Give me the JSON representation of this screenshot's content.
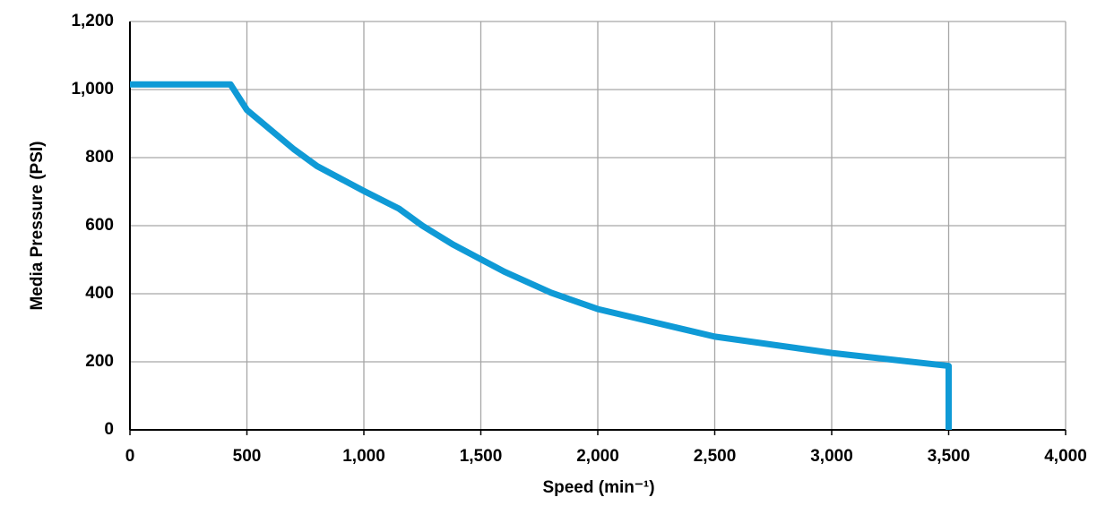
{
  "chart_data": {
    "type": "line",
    "x_label": "Speed (min⁻¹)",
    "y_label": "Media Pressure (PSI)",
    "x": [
      0,
      430,
      500,
      700,
      800,
      1000,
      1150,
      1250,
      1380,
      1600,
      1800,
      2000,
      2500,
      3000,
      3500,
      3500
    ],
    "series": [
      {
        "color": "#0f9ad6",
        "values": [
          1015,
          1015,
          940,
          825,
          775,
          702,
          650,
          600,
          545,
          465,
          403,
          355,
          274,
          226,
          188,
          0
        ]
      }
    ],
    "xlim": [
      0,
      4000
    ],
    "xticks": [
      0,
      500,
      {
        "value": 1000,
        "label": "1,000"
      },
      {
        "value": 1500,
        "label": "1,500"
      },
      {
        "value": 2000,
        "label": "2,000"
      },
      {
        "value": 2500,
        "label": "2,500"
      },
      {
        "value": 3000,
        "label": "3,000"
      },
      {
        "value": 3500,
        "label": "3,500"
      },
      {
        "value": 4000,
        "label": "4,000"
      }
    ],
    "ylim": [
      0,
      1200
    ],
    "yticks": [
      0,
      200,
      400,
      600,
      800,
      {
        "value": 1000,
        "label": "1,000"
      },
      {
        "value": 1200,
        "label": "1,200"
      }
    ],
    "grid": true
  }
}
